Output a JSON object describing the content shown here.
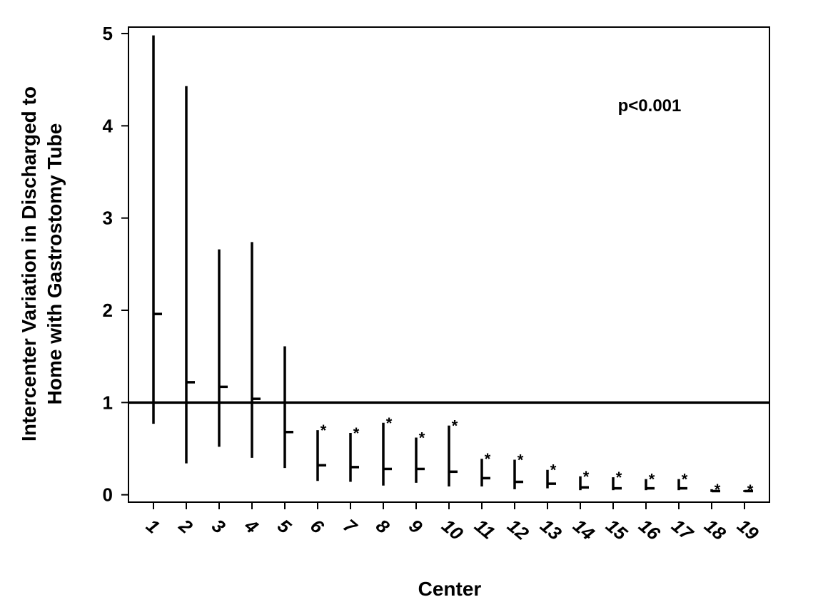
{
  "chart_data": {
    "type": "interval",
    "xlabel": "Center",
    "ylabel": [
      "Intercenter Variation in Discharged to",
      "Home with Gastrostomy Tube"
    ],
    "annotation": "p<0.001",
    "reference_line": 1,
    "categories": [
      "1",
      "2",
      "3",
      "4",
      "5",
      "6",
      "7",
      "8",
      "9",
      "10",
      "11",
      "12",
      "13",
      "14",
      "15",
      "16",
      "17",
      "18",
      "19"
    ],
    "series": [
      {
        "color": "#000000",
        "lower": [
          0.77,
          0.34,
          0.52,
          0.4,
          0.29,
          0.15,
          0.14,
          0.1,
          0.13,
          0.09,
          0.09,
          0.06,
          0.07,
          0.05,
          0.05,
          0.05,
          0.05,
          0.03,
          0.03
        ],
        "upper": [
          4.98,
          4.43,
          2.66,
          2.74,
          1.61,
          0.7,
          0.67,
          0.78,
          0.62,
          0.75,
          0.39,
          0.38,
          0.27,
          0.2,
          0.19,
          0.17,
          0.17,
          0.06,
          0.05
        ],
        "values": [
          1.96,
          1.22,
          1.17,
          1.04,
          0.68,
          0.32,
          0.3,
          0.28,
          0.28,
          0.25,
          0.18,
          0.14,
          0.12,
          0.08,
          0.07,
          0.07,
          0.07,
          0.04,
          0.04
        ],
        "flags": [
          null,
          null,
          null,
          null,
          null,
          "*",
          "*",
          "*",
          "*",
          "*",
          "*",
          "*",
          "*",
          "*",
          "*",
          "*",
          "*",
          "*",
          "*"
        ]
      }
    ],
    "ylim": [
      -0.08,
      5.07
    ],
    "yticks": [
      0,
      1,
      2,
      3,
      4,
      5
    ]
  }
}
